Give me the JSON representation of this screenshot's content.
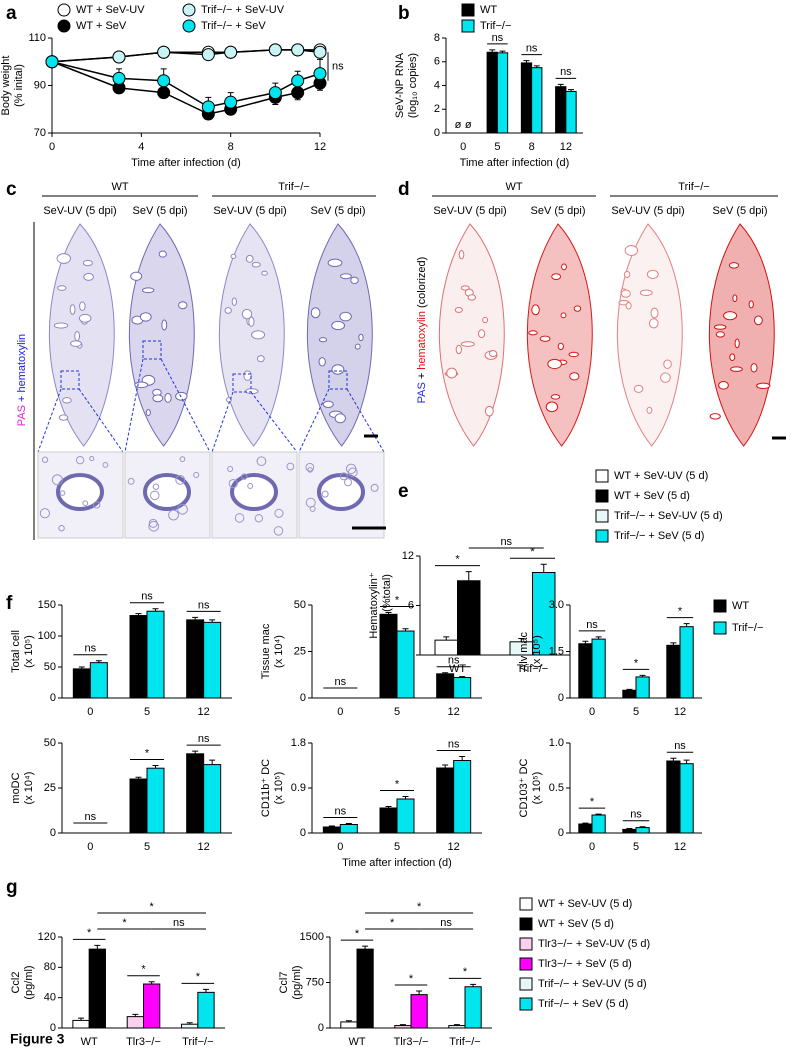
{
  "figure_label": "Figure 3",
  "chart_data": [
    {
      "panel": "a",
      "type": "line",
      "x_label": "Time after infection (d)",
      "y_label": [
        "Body weight",
        "(% inital)"
      ],
      "x": [
        0,
        3,
        5,
        7,
        8,
        10,
        11,
        12
      ],
      "xlim": [
        0,
        12
      ],
      "xticks": [
        0,
        4,
        8,
        12
      ],
      "ylim": [
        70,
        110
      ],
      "yticks": [
        70,
        90,
        110
      ],
      "series": [
        {
          "name": "WT + SeV-UV",
          "color": "#ffffff",
          "values": [
            100,
            102,
            104,
            104,
            104,
            105,
            105,
            105
          ],
          "errors": [
            0,
            1,
            1,
            1,
            1,
            1,
            1,
            2
          ]
        },
        {
          "name": "WT + SeV",
          "color": "#000000",
          "values": [
            100,
            89,
            87,
            78,
            80,
            85,
            87,
            91
          ],
          "errors": [
            0,
            2,
            2,
            2,
            2,
            3,
            3,
            3
          ]
        },
        {
          "name": "Trif−/− + SeV-UV",
          "color": "#c8f4f6",
          "values": [
            100,
            102,
            104,
            103,
            104,
            105,
            105,
            104
          ],
          "errors": [
            0,
            1,
            1,
            1,
            1,
            1,
            1,
            2
          ]
        },
        {
          "name": "Trif−/− + SeV",
          "color": "#00e5ee",
          "values": [
            100,
            93,
            92,
            81,
            83,
            87,
            92,
            95
          ],
          "errors": [
            0,
            4,
            5,
            4,
            4,
            4,
            4,
            6
          ]
        }
      ],
      "annotation": "ns"
    },
    {
      "panel": "b",
      "type": "bar",
      "x_label": "Time after infection (d)",
      "y_label": [
        "SeV-NP RNA",
        "(log₁₀ copies)"
      ],
      "categories": [
        "0",
        "5",
        "8",
        "12"
      ],
      "ylim": [
        0,
        8
      ],
      "yticks": [
        0,
        2,
        4,
        6,
        8
      ],
      "series": [
        {
          "name": "WT",
          "color": "#000000",
          "values": [
            null,
            6.8,
            5.9,
            3.9
          ],
          "errors": [
            null,
            0.2,
            0.2,
            0.2
          ],
          "value_labels": [
            "ø",
            null,
            null,
            null
          ]
        },
        {
          "name": "Trif−/−",
          "color": "#00e5ee",
          "values": [
            null,
            6.75,
            5.5,
            3.5
          ],
          "errors": [
            null,
            0.15,
            0.15,
            0.15
          ],
          "value_labels": [
            "ø",
            null,
            null,
            null
          ]
        }
      ],
      "significance": [
        null,
        "ns",
        "ns",
        "ns"
      ]
    },
    {
      "panel": "e",
      "type": "bar",
      "y_label": [
        "Hematoxylin⁺",
        "area (%total)"
      ],
      "categories": [
        "WT",
        "Trif−/−"
      ],
      "ylim": [
        0,
        12
      ],
      "yticks": [
        0,
        6,
        12
      ],
      "series": [
        {
          "name": "WT + SeV-UV (5 d)",
          "color": "#ffffff",
          "values": [
            1.8,
            null
          ],
          "errors": [
            0.4,
            null
          ]
        },
        {
          "name": "WT + SeV (5 d)",
          "color": "#000000",
          "values": [
            9,
            null
          ],
          "errors": [
            1.1,
            null
          ]
        },
        {
          "name": "Trif−/− + SeV-UV (5 d)",
          "color": "#e6f8f8",
          "values": [
            null,
            1.6
          ],
          "errors": [
            null,
            0.4
          ]
        },
        {
          "name": "Trif−/− + SeV (5 d)",
          "color": "#00e5ee",
          "values": [
            null,
            10
          ],
          "errors": [
            null,
            1
          ]
        }
      ],
      "pair_labels": [
        "*",
        "*"
      ],
      "cross_labels": [
        "ns"
      ]
    },
    {
      "panel": "f",
      "type": "bar",
      "y_label": [
        "Total cell",
        "(x 10⁵)"
      ],
      "categories": [
        "0",
        "5",
        "12"
      ],
      "ylim": [
        0,
        150
      ],
      "yticks": [
        0,
        50,
        100,
        150
      ],
      "series": [
        {
          "name": "WT",
          "color": "#000000",
          "values": [
            47,
            133,
            126
          ],
          "errors": [
            3,
            3,
            4
          ]
        },
        {
          "name": "Trif−/−",
          "color": "#00e5ee",
          "values": [
            57,
            140,
            122
          ],
          "errors": [
            3,
            4,
            4
          ]
        }
      ],
      "significance": [
        "ns",
        "ns",
        "ns"
      ]
    },
    {
      "type": "bar",
      "y_label": [
        "Tissue mac",
        "(x 10⁴)"
      ],
      "categories": [
        "0",
        "5",
        "12"
      ],
      "ylim": [
        0,
        50
      ],
      "yticks": [
        0,
        25,
        50
      ],
      "series": [
        {
          "color": "#000000",
          "values": [
            null,
            45,
            13
          ],
          "errors": [
            null,
            1,
            0.6
          ]
        },
        {
          "color": "#00e5ee",
          "values": [
            null,
            36,
            11
          ],
          "errors": [
            null,
            1.2,
            0.5
          ]
        }
      ],
      "significance": [
        "ns",
        "*",
        "ns"
      ]
    },
    {
      "type": "bar",
      "y_label": [
        "Alv mac",
        "(x 10⁵)"
      ],
      "categories": [
        "0",
        "5",
        "12"
      ],
      "ylim": [
        0,
        3
      ],
      "yticks": [
        0,
        1.5,
        {
          "value": 3,
          "label": "3.0"
        }
      ],
      "series": [
        {
          "color": "#000000",
          "values": [
            1.75,
            0.25,
            1.7
          ],
          "errors": [
            0.08,
            0.03,
            0.08
          ]
        },
        {
          "color": "#00e5ee",
          "values": [
            1.9,
            0.68,
            2.3
          ],
          "errors": [
            0.07,
            0.05,
            0.1
          ]
        }
      ],
      "significance": [
        "ns",
        "*",
        "*"
      ]
    },
    {
      "type": "bar",
      "y_label": [
        "moDC",
        "(x 10⁴)"
      ],
      "categories": [
        "0",
        "5",
        "12"
      ],
      "ylim": [
        0,
        50
      ],
      "yticks": [
        0,
        25,
        50
      ],
      "series": [
        {
          "color": "#000000",
          "values": [
            null,
            30,
            44
          ],
          "errors": [
            null,
            1,
            1.5
          ]
        },
        {
          "color": "#00e5ee",
          "values": [
            null,
            36,
            38
          ],
          "errors": [
            null,
            1.5,
            2.5
          ]
        }
      ],
      "significance": [
        "ns",
        "*",
        "ns"
      ]
    },
    {
      "type": "bar",
      "x_label": "Time after infection (d)",
      "y_label": [
        "CD11b⁺ DC",
        "(x 10⁵)"
      ],
      "categories": [
        "0",
        "5",
        "12"
      ],
      "ylim": [
        0,
        1.8
      ],
      "yticks": [
        0,
        0.9,
        1.8
      ],
      "series": [
        {
          "color": "#000000",
          "values": [
            0.12,
            0.5,
            1.3
          ],
          "errors": [
            0.02,
            0.03,
            0.06
          ]
        },
        {
          "color": "#00e5ee",
          "values": [
            0.17,
            0.68,
            1.45
          ],
          "errors": [
            0.02,
            0.05,
            0.08
          ]
        }
      ],
      "significance": [
        "ns",
        "*",
        "ns"
      ]
    },
    {
      "type": "bar",
      "y_label": [
        "CD103⁺ DC",
        "(x 10⁵)"
      ],
      "categories": [
        "0",
        "5",
        "12"
      ],
      "ylim": [
        0,
        1
      ],
      "yticks": [
        0,
        0.5,
        {
          "value": 1,
          "label": "1.0"
        }
      ],
      "series": [
        {
          "color": "#000000",
          "values": [
            0.1,
            0.04,
            0.8
          ],
          "errors": [
            0.01,
            0.01,
            0.03
          ]
        },
        {
          "color": "#00e5ee",
          "values": [
            0.2,
            0.06,
            0.77
          ],
          "errors": [
            0.01,
            0.01,
            0.04
          ]
        }
      ],
      "significance": [
        "*",
        "ns",
        "ns"
      ]
    },
    {
      "panel": "g",
      "type": "bar",
      "y_label": [
        "Ccl2",
        "(pg/ml)"
      ],
      "categories": [
        "WT",
        "Tlr3−/−",
        "Trif−/−"
      ],
      "ylim": [
        0,
        120
      ],
      "yticks": [
        0,
        40,
        80,
        120
      ],
      "series": [
        {
          "name": "WT + SeV-UV (5 d)",
          "color": "#ffffff",
          "values": [
            10,
            null,
            null
          ],
          "errors": [
            3,
            null,
            null
          ]
        },
        {
          "name": "WT + SeV (5 d)",
          "color": "#000000",
          "values": [
            104,
            null,
            null
          ],
          "errors": [
            5,
            null,
            null
          ]
        },
        {
          "name": "Tlr3−/− + SeV-UV (5 d)",
          "color": "#f9d0f0",
          "values": [
            null,
            15,
            null
          ],
          "errors": [
            null,
            3,
            null
          ]
        },
        {
          "name": "Tlr3−/− + SeV (5 d)",
          "color": "#ff00ff",
          "values": [
            null,
            58,
            null
          ],
          "errors": [
            null,
            3,
            null
          ]
        },
        {
          "name": "Trif−/− + SeV-UV (5 d)",
          "color": "#e6f8f8",
          "values": [
            null,
            null,
            5
          ],
          "errors": [
            null,
            null,
            2
          ]
        },
        {
          "name": "Trif−/− + SeV (5 d)",
          "color": "#00e5ee",
          "values": [
            null,
            null,
            47
          ],
          "errors": [
            null,
            null,
            4
          ]
        }
      ],
      "pair_labels": [
        "*",
        "*",
        "*"
      ],
      "cross_labels": [
        "*",
        "*",
        "ns"
      ]
    },
    {
      "type": "bar",
      "y_label": [
        "Ccl7",
        "(pg/ml)"
      ],
      "categories": [
        "WT",
        "Tlr3−/−",
        "Trif−/−"
      ],
      "ylim": [
        0,
        1500
      ],
      "yticks": [
        0,
        750,
        1500
      ],
      "series": [
        {
          "color": "#ffffff",
          "values": [
            100,
            null,
            null
          ],
          "errors": [
            20,
            null,
            null
          ]
        },
        {
          "color": "#000000",
          "values": [
            1300,
            null,
            null
          ],
          "errors": [
            50,
            null,
            null
          ]
        },
        {
          "color": "#f9d0f0",
          "values": [
            null,
            40,
            null
          ],
          "errors": [
            null,
            15,
            null
          ]
        },
        {
          "color": "#ff00ff",
          "values": [
            null,
            550,
            null
          ],
          "errors": [
            null,
            60,
            null
          ]
        },
        {
          "color": "#e6f8f8",
          "values": [
            null,
            null,
            40
          ],
          "errors": [
            null,
            null,
            15
          ]
        },
        {
          "color": "#00e5ee",
          "values": [
            null,
            null,
            680
          ],
          "errors": [
            null,
            null,
            40
          ]
        }
      ],
      "pair_labels": [
        "*",
        "*",
        "*"
      ],
      "cross_labels": [
        "*",
        "*",
        "ns"
      ]
    }
  ],
  "panel_c": {
    "panel": "c",
    "groups": [
      "WT",
      "Trif−/−"
    ],
    "columns": [
      "SeV-UV (5 dpi)",
      "SeV  (5 dpi)",
      "SeV-UV (5 dpi)",
      "SeV  (5 dpi)"
    ],
    "stain": [
      "PAS",
      "+ hematoxylin"
    ]
  },
  "panel_d": {
    "panel": "d",
    "groups": [
      "WT",
      "Trif−/−"
    ],
    "columns": [
      "SeV-UV (5 dpi)",
      "SeV  (5 dpi)",
      "SeV-UV (5 dpi)",
      "SeV  (5 dpi)"
    ],
    "stain": [
      "PAS",
      "+",
      "hematoxylin",
      "(colorized)"
    ]
  }
}
